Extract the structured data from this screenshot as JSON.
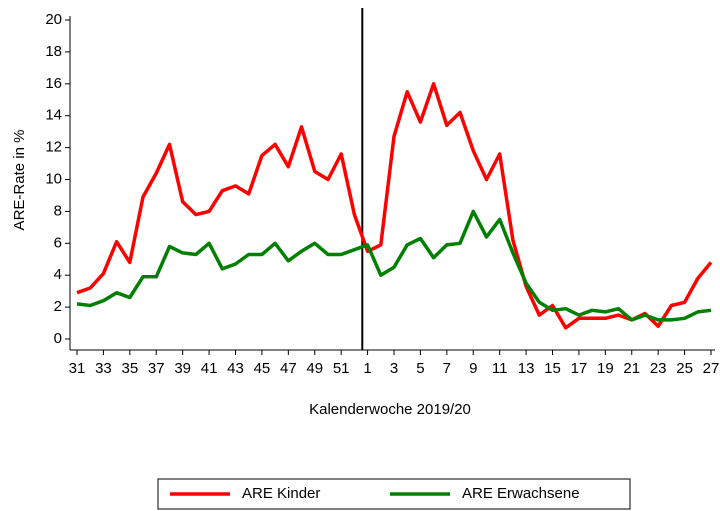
{
  "chart_data": {
    "type": "line",
    "x_label": "Kalenderwoche 2019/20",
    "y_label": "ARE-Rate in %",
    "categories": [
      "31",
      null,
      "33",
      null,
      "35",
      null,
      "37",
      null,
      "39",
      null,
      "41",
      null,
      "43",
      null,
      "45",
      null,
      "47",
      null,
      "49",
      null,
      "51",
      null,
      "1",
      null,
      "3",
      null,
      "5",
      null,
      "7",
      null,
      "9",
      null,
      "11",
      null,
      "13",
      null,
      "15",
      null,
      "17",
      null,
      "19",
      null,
      "21",
      null,
      "23",
      null,
      "25",
      null,
      "27"
    ],
    "series": [
      {
        "name": "ARE Kinder",
        "color": "#ff0000",
        "values": [
          2.9,
          3.2,
          4.1,
          6.1,
          4.8,
          8.9,
          10.4,
          12.2,
          8.6,
          7.8,
          8.0,
          9.3,
          9.6,
          9.1,
          11.5,
          12.2,
          10.8,
          13.3,
          10.5,
          10.0,
          11.6,
          7.8,
          5.5,
          5.9,
          12.7,
          15.5,
          13.6,
          16.0,
          13.4,
          14.2,
          11.8,
          10.0,
          11.6,
          6.2,
          3.3,
          1.5,
          2.1,
          0.7,
          1.3,
          1.3,
          1.3,
          1.5,
          1.2,
          1.6,
          0.8,
          2.1,
          2.3,
          3.8,
          4.8
        ]
      },
      {
        "name": "ARE Erwachsene",
        "color": "#008000",
        "values": [
          2.2,
          2.1,
          2.4,
          2.9,
          2.6,
          3.9,
          3.9,
          5.8,
          5.4,
          5.3,
          6.0,
          4.4,
          4.7,
          5.3,
          5.3,
          6.0,
          4.9,
          5.5,
          6.0,
          5.3,
          5.3,
          5.6,
          5.9,
          4.0,
          4.5,
          5.9,
          6.3,
          5.1,
          5.9,
          6.0,
          8.0,
          6.4,
          7.5,
          5.4,
          3.5,
          2.3,
          1.8,
          1.9,
          1.5,
          1.8,
          1.7,
          1.9,
          1.2,
          1.5,
          1.2,
          1.2,
          1.3,
          1.7,
          1.8
        ]
      }
    ],
    "ylim": [
      0,
      20
    ],
    "yticks": [
      0,
      2,
      4,
      6,
      8,
      10,
      12,
      14,
      16,
      18,
      20
    ],
    "legend": "bottom"
  }
}
